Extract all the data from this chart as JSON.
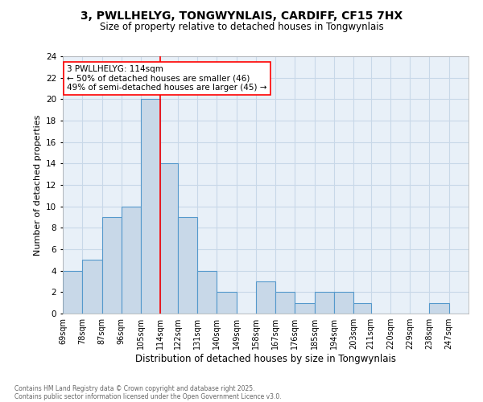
{
  "title": "3, PWLLHELYG, TONGWYNLAIS, CARDIFF, CF15 7HX",
  "subtitle": "Size of property relative to detached houses in Tongwynlais",
  "xlabel": "Distribution of detached houses by size in Tongwynlais",
  "ylabel": "Number of detached properties",
  "bin_labels": [
    "69sqm",
    "78sqm",
    "87sqm",
    "96sqm",
    "105sqm",
    "114sqm",
    "122sqm",
    "131sqm",
    "140sqm",
    "149sqm",
    "158sqm",
    "167sqm",
    "176sqm",
    "185sqm",
    "194sqm",
    "203sqm",
    "211sqm",
    "220sqm",
    "229sqm",
    "238sqm",
    "247sqm"
  ],
  "bin_edges": [
    69,
    78,
    87,
    96,
    105,
    114,
    122,
    131,
    140,
    149,
    158,
    167,
    176,
    185,
    194,
    203,
    211,
    220,
    229,
    238,
    247,
    256
  ],
  "bar_heights": [
    4,
    5,
    9,
    10,
    20,
    14,
    9,
    4,
    2,
    0,
    3,
    2,
    1,
    2,
    2,
    1,
    0,
    0,
    0,
    1,
    0
  ],
  "bar_color": "#c8d8e8",
  "bar_edge_color": "#5599cc",
  "grid_color": "#c8d8e8",
  "background_color": "#e8f0f8",
  "red_line_x": 114,
  "ylim": [
    0,
    24
  ],
  "yticks": [
    0,
    2,
    4,
    6,
    8,
    10,
    12,
    14,
    16,
    18,
    20,
    22,
    24
  ],
  "annotation_text": "3 PWLLHELYG: 114sqm\n← 50% of detached houses are smaller (46)\n49% of semi-detached houses are larger (45) →",
  "footer_line1": "Contains HM Land Registry data © Crown copyright and database right 2025.",
  "footer_line2": "Contains public sector information licensed under the Open Government Licence v3.0."
}
